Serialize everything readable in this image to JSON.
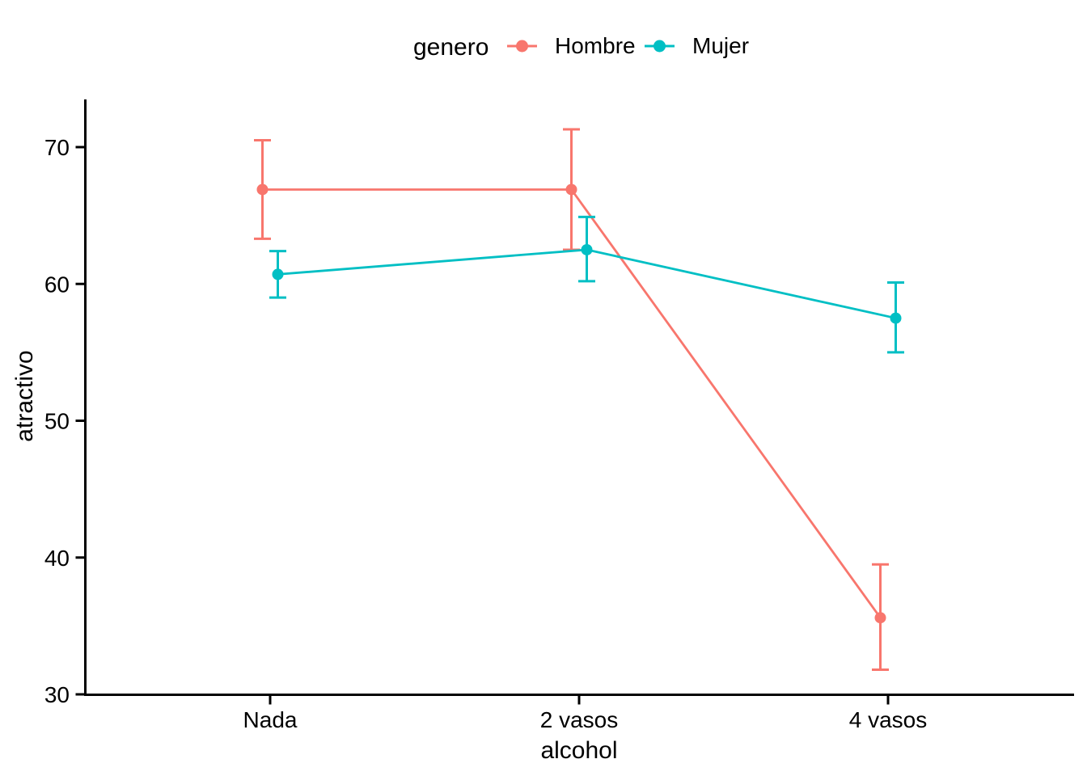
{
  "chart_data": {
    "type": "line",
    "title": "",
    "legend_title": "genero",
    "legend_position": "top",
    "xlabel": "alcohol",
    "ylabel": "atractivo",
    "categories": [
      "Nada",
      "2 vasos",
      "4 vasos"
    ],
    "yticks": [
      30,
      40,
      50,
      60,
      70
    ],
    "ylim": [
      30,
      73.5
    ],
    "grid": false,
    "background_color": "#FFFFFF",
    "axis_color": "#000000",
    "text_color": "#000000",
    "series": [
      {
        "name": "Hombre",
        "color": "#F8766D",
        "means": [
          66.9,
          66.9,
          35.6
        ],
        "ci_low": [
          63.3,
          62.5,
          31.8
        ],
        "ci_high": [
          70.5,
          71.3,
          39.5
        ]
      },
      {
        "name": "Mujer",
        "color": "#00BFC4",
        "means": [
          60.7,
          62.5,
          57.5
        ],
        "ci_low": [
          59.0,
          60.2,
          55.0
        ],
        "ci_high": [
          62.4,
          64.9,
          60.1
        ]
      }
    ]
  }
}
